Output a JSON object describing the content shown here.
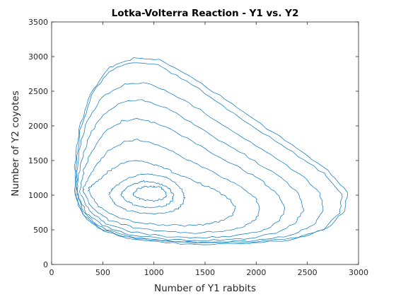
{
  "chart_data": {
    "type": "line",
    "title": "Lotka-Volterra Reaction - Y1 vs. Y2",
    "xlabel": "Number of Y1 rabbits",
    "ylabel": "Number of Y2 coyotes",
    "xlim": [
      0,
      3000
    ],
    "ylim": [
      0,
      3500
    ],
    "xticks": [
      0,
      500,
      1000,
      1500,
      2000,
      2500,
      3000
    ],
    "yticks": [
      0,
      500,
      1000,
      1500,
      2000,
      2500,
      3000,
      3500
    ],
    "grid": false,
    "line_color": "#0072BD",
    "series": [
      {
        "x": [
          230,
          300,
          450,
          700,
          1100,
          1550,
          2000,
          2400,
          2700,
          2870,
          2890,
          2700,
          2400,
          2050,
          1700,
          1350,
          1050,
          800,
          560,
          380,
          270,
          225,
          230
        ],
        "y": [
          1000,
          720,
          530,
          400,
          330,
          310,
          330,
          390,
          530,
          780,
          1050,
          1350,
          1680,
          2020,
          2380,
          2730,
          2950,
          2980,
          2840,
          2480,
          1960,
          1420,
          1000
        ]
      },
      {
        "x": [
          240,
          320,
          480,
          730,
          1120,
          1560,
          1990,
          2380,
          2660,
          2820,
          2840,
          2660,
          2360,
          2010,
          1660,
          1320,
          1030,
          790,
          560,
          390,
          280,
          238,
          240
        ],
        "y": [
          980,
          700,
          510,
          380,
          310,
          290,
          305,
          365,
          500,
          750,
          1020,
          1310,
          1620,
          1950,
          2300,
          2650,
          2880,
          2920,
          2790,
          2440,
          1920,
          1380,
          980
        ]
      },
      {
        "x": [
          250,
          330,
          490,
          750,
          1140,
          1580,
          1980,
          2330,
          2560,
          2660,
          2620,
          2430,
          2150,
          1830,
          1500,
          1190,
          930,
          710,
          500,
          350,
          265,
          248,
          250
        ],
        "y": [
          1000,
          720,
          530,
          400,
          335,
          320,
          345,
          420,
          570,
          790,
          1030,
          1300,
          1570,
          1860,
          2180,
          2460,
          2620,
          2600,
          2420,
          2080,
          1640,
          1250,
          1000
        ]
      },
      {
        "x": [
          260,
          340,
          500,
          760,
          1130,
          1520,
          1890,
          2200,
          2390,
          2460,
          2410,
          2240,
          1980,
          1690,
          1400,
          1120,
          880,
          680,
          500,
          370,
          290,
          258,
          260
        ],
        "y": [
          1010,
          740,
          560,
          430,
          360,
          345,
          370,
          450,
          600,
          800,
          1020,
          1260,
          1500,
          1750,
          2020,
          2260,
          2380,
          2340,
          2160,
          1860,
          1500,
          1190,
          1010
        ]
      },
      {
        "x": [
          280,
          370,
          530,
          780,
          1120,
          1460,
          1780,
          2050,
          2220,
          2280,
          2230,
          2070,
          1840,
          1580,
          1320,
          1080,
          870,
          690,
          530,
          410,
          320,
          282,
          280
        ],
        "y": [
          1020,
          770,
          590,
          470,
          400,
          385,
          410,
          480,
          610,
          790,
          980,
          1190,
          1390,
          1600,
          1820,
          2010,
          2100,
          2070,
          1920,
          1680,
          1400,
          1150,
          1020
        ]
      },
      {
        "x": [
          310,
          400,
          560,
          800,
          1100,
          1400,
          1670,
          1880,
          2000,
          2040,
          1990,
          1850,
          1650,
          1430,
          1210,
          1010,
          840,
          690,
          560,
          450,
          360,
          315,
          310
        ],
        "y": [
          1040,
          810,
          640,
          530,
          470,
          455,
          480,
          545,
          660,
          800,
          960,
          1120,
          1280,
          1440,
          1600,
          1740,
          1800,
          1760,
          1640,
          1460,
          1250,
          1110,
          1040
        ]
      },
      {
        "x": [
          360,
          440,
          580,
          790,
          1050,
          1300,
          1520,
          1680,
          1770,
          1790,
          1740,
          1620,
          1450,
          1270,
          1100,
          950,
          820,
          700,
          590,
          490,
          410,
          365,
          360
        ],
        "y": [
          1060,
          870,
          720,
          620,
          570,
          560,
          580,
          635,
          720,
          830,
          940,
          1060,
          1170,
          1280,
          1390,
          1470,
          1500,
          1470,
          1380,
          1260,
          1160,
          1100,
          1060
        ]
      },
      {
        "x": [
          560,
          620,
          720,
          860,
          1000,
          1140,
          1240,
          1290,
          1300,
          1270,
          1200,
          1100,
          980,
          860,
          750,
          660,
          600,
          570,
          560
        ],
        "y": [
          1000,
          880,
          790,
          740,
          730,
          750,
          810,
          890,
          990,
          1090,
          1190,
          1270,
          1300,
          1290,
          1240,
          1170,
          1100,
          1050,
          1000
        ]
      },
      {
        "x": [
          680,
          730,
          810,
          920,
          1030,
          1130,
          1180,
          1190,
          1160,
          1090,
          1000,
          900,
          810,
          740,
          700,
          680
        ],
        "y": [
          1010,
          920,
          860,
          830,
          830,
          860,
          920,
          1000,
          1080,
          1150,
          1190,
          1200,
          1170,
          1120,
          1060,
          1010
        ]
      },
      {
        "x": [
          800,
          850,
          930,
          1020,
          1090,
          1120,
          1110,
          1060,
          980,
          900,
          840,
          805,
          800
        ],
        "y": [
          1000,
          950,
          920,
          920,
          950,
          1000,
          1060,
          1110,
          1130,
          1120,
          1090,
          1040,
          1000
        ]
      }
    ]
  }
}
